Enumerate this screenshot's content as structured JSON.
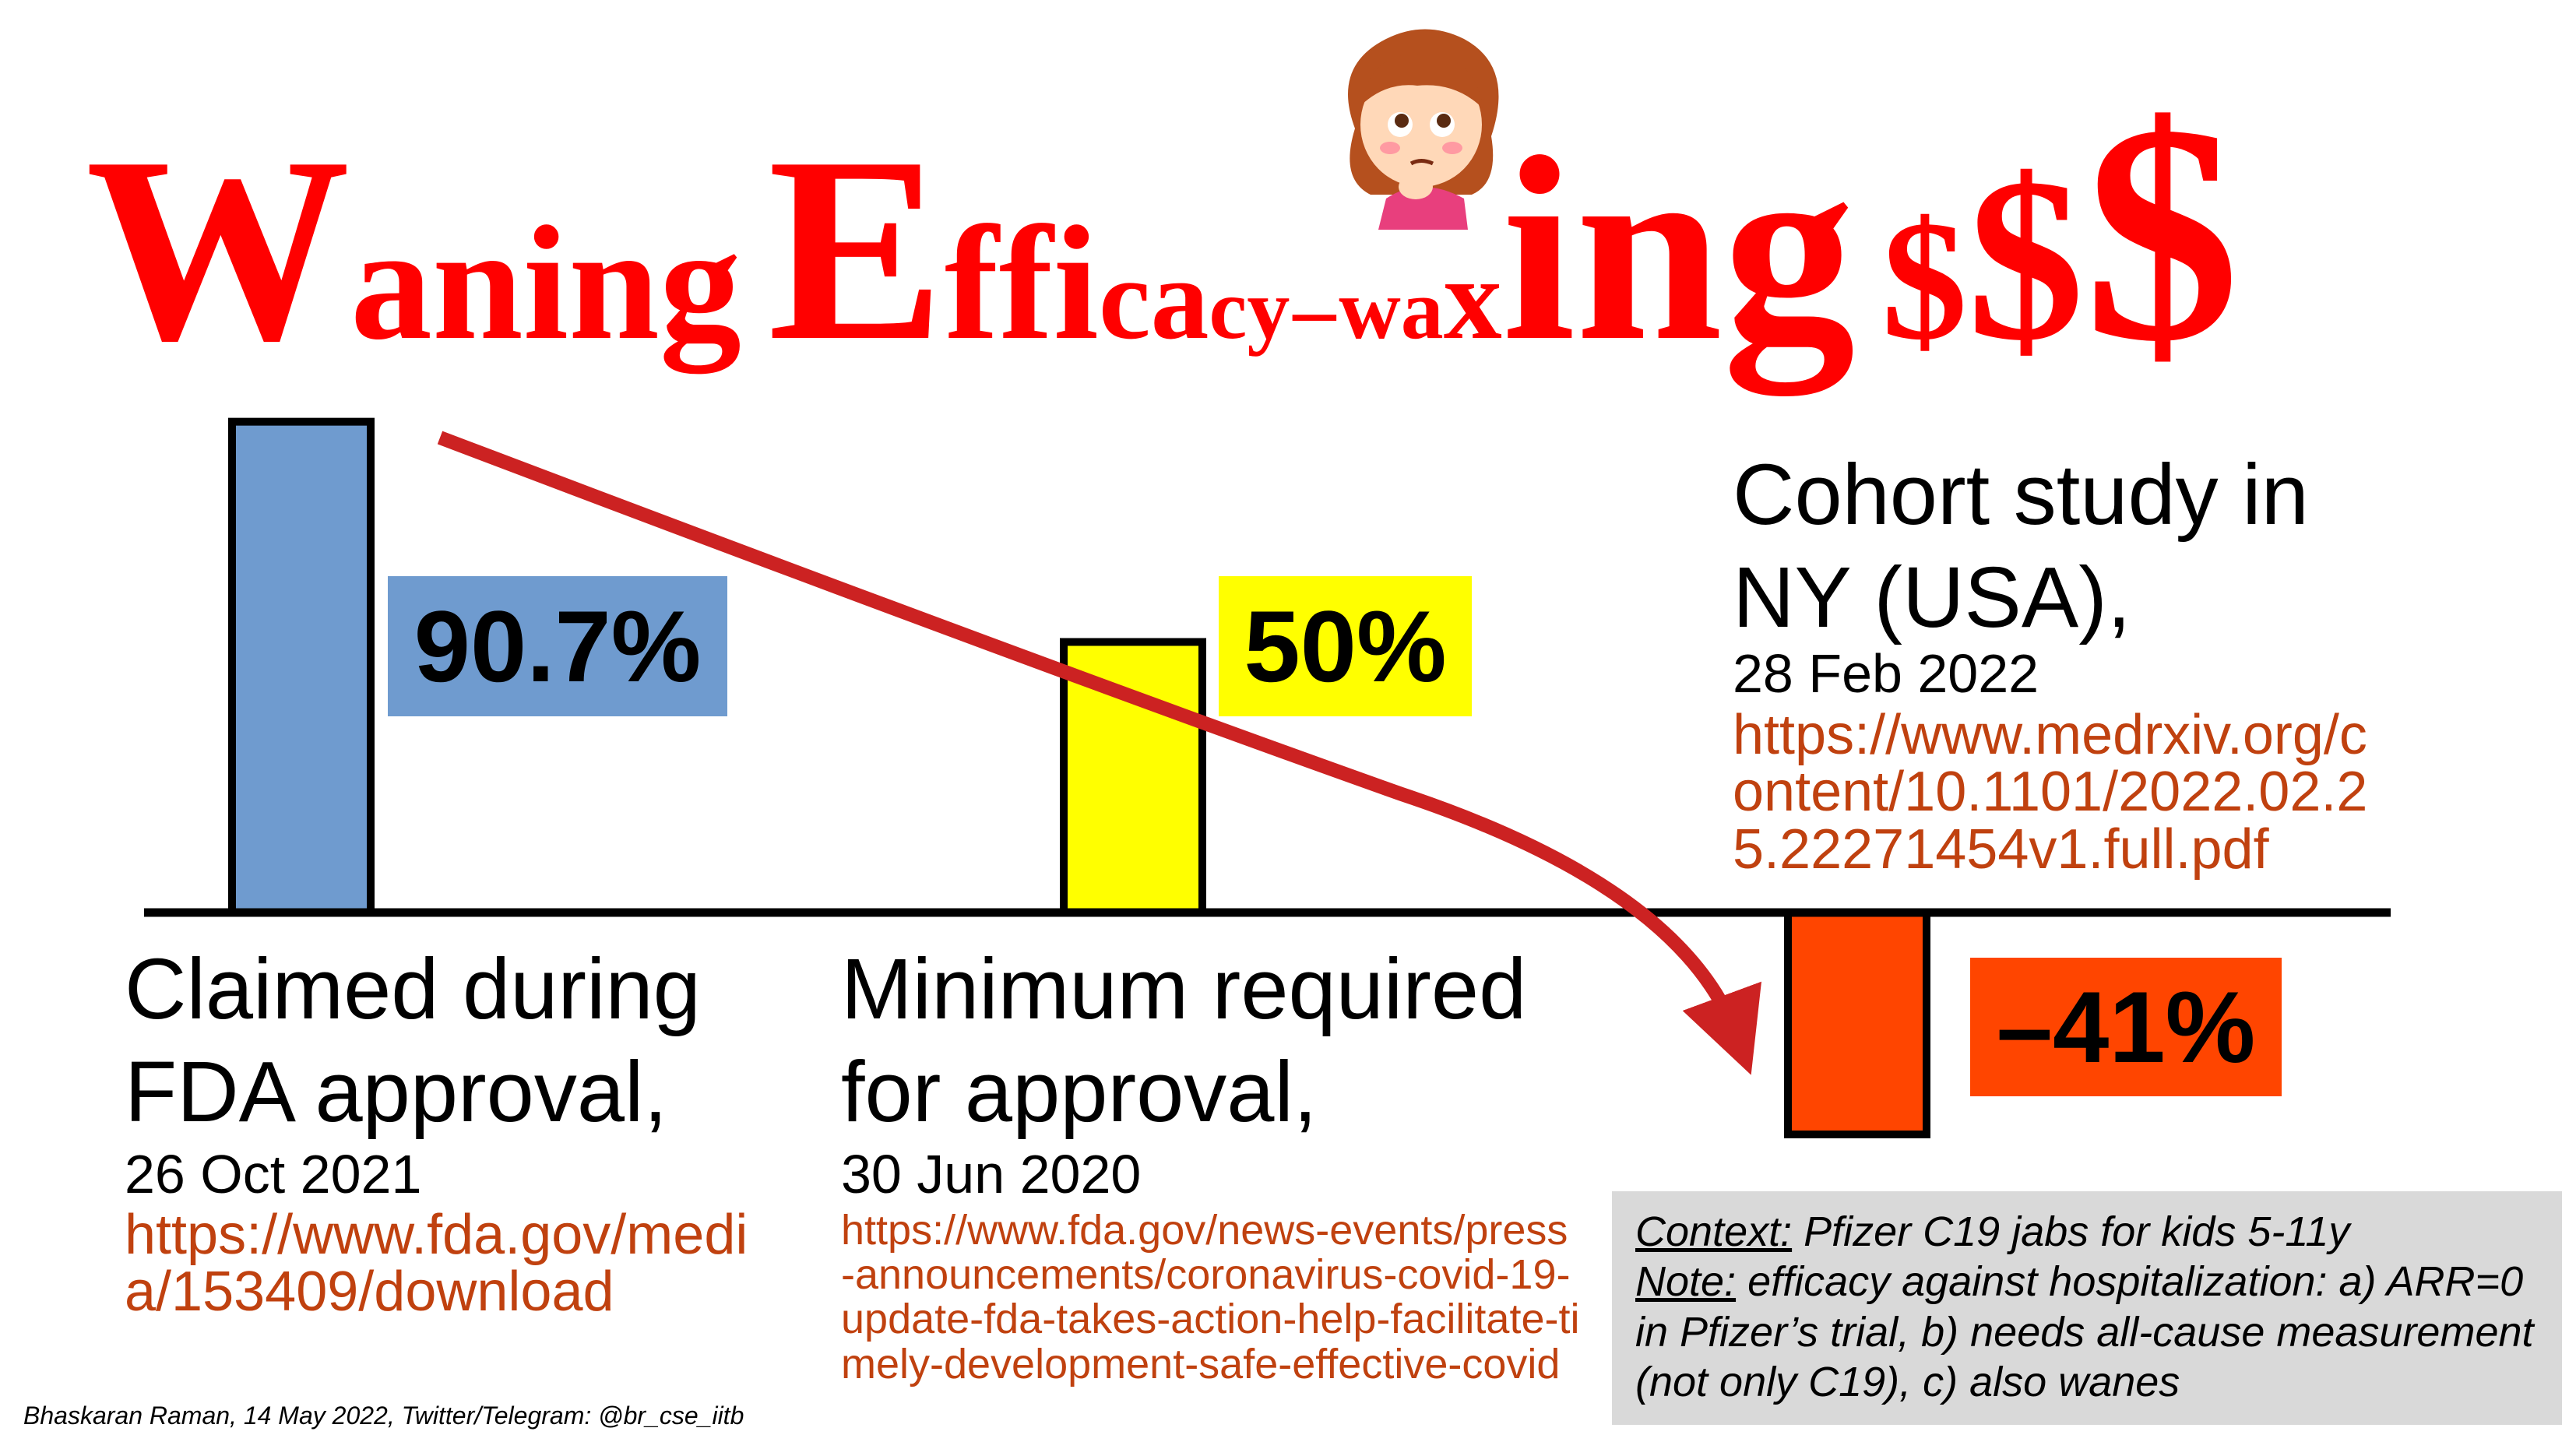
{
  "title": {
    "w": "W",
    "aning": "aning",
    "e": "E",
    "ffi": "ffi",
    "ca": "ca",
    "cy": "cy",
    "dash": "–",
    "wa": "wa",
    "x": "x",
    "ing": "ing",
    "d1": "$",
    "d2": "$",
    "d3": "$"
  },
  "bars": [
    {
      "value_label": "90.7%",
      "heading": [
        "Claimed during",
        "FDA approval,"
      ],
      "date": "26 Oct 2021",
      "link": "https://www.fda.gov/media/153409/download"
    },
    {
      "value_label": "50%",
      "heading": [
        "Minimum required",
        "for approval,"
      ],
      "date": "30 Jun 2020",
      "link": "https://www.fda.gov/news-events/press-announcements/coronavirus-covid-19-update-fda-takes-action-help-facilitate-timely-development-safe-effective-covid"
    },
    {
      "value_label": "–41%",
      "heading": [
        "Cohort study in",
        "NY (USA),"
      ],
      "date": "28 Feb 2022",
      "link": "https://www.medrxiv.org/content/10.1101/2022.02.25.22271454v1.full.pdf"
    }
  ],
  "chart_data": {
    "type": "bar",
    "title": "Waning Efficacy – waxing $$$",
    "categories": [
      "Claimed during FDA approval, 26 Oct 2021",
      "Minimum required for approval, 30 Jun 2020",
      "Cohort study in NY (USA), 28 Feb 2022"
    ],
    "values": [
      90.7,
      50,
      -41
    ],
    "value_labels": [
      "90.7%",
      "50%",
      "–41%"
    ],
    "colors": [
      "#6f9bcf",
      "#ffff00",
      "#ff4500"
    ],
    "grid": false,
    "legend": "none",
    "annotation": "downward trend arrow"
  },
  "context": {
    "label1": "Context:",
    "text1": " Pfizer C19 jabs for kids 5-11y",
    "label2": "Note:",
    "text2": " efficacy against hospitalization: a) ARR=0 in Pfizer’s trial, b) needs all-cause measurement (not only C19), c) also wanes"
  },
  "credit": "Bhaskaran Raman, 14 May 2022, Twitter/Telegram: @br_cse_iitb",
  "colors": {
    "title": "#ff0000",
    "link": "#c0410f",
    "arrow": "#cc2222",
    "context_bg": "#d9d9d9"
  },
  "icons": {
    "face": "thinking-girl-icon"
  }
}
